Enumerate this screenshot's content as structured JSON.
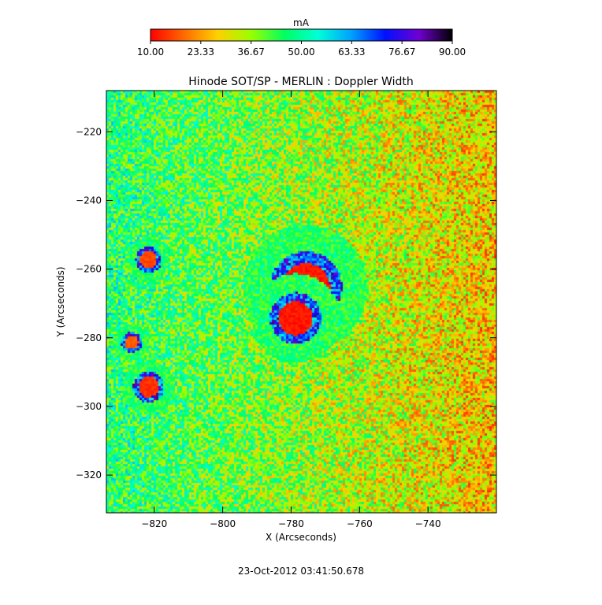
{
  "chart_data": {
    "type": "heatmap",
    "title": "Hinode SOT/SP - MERLIN : Doppler Width",
    "xlabel": "X (Arcseconds)",
    "ylabel": "Y (Arcseconds)",
    "xlim": [
      -834,
      -720
    ],
    "ylim": [
      -331,
      -208
    ],
    "x_ticks": [
      -820,
      -800,
      -780,
      -760,
      -740
    ],
    "y_ticks": [
      -220,
      -240,
      -260,
      -280,
      -300,
      -320
    ],
    "colorbar": {
      "label": "mA",
      "range": [
        10.0,
        90.0
      ],
      "tick_labels": [
        "10.00",
        "23.33",
        "36.67",
        "50.00",
        "63.33",
        "76.67",
        "90.00"
      ],
      "colors": [
        "#ff0000",
        "#ff6a00",
        "#ffd000",
        "#9aff00",
        "#00ff60",
        "#00ffd8",
        "#00a0ff",
        "#0010ff",
        "#7000d0",
        "#000000"
      ]
    },
    "features": [
      {
        "kind": "umbra",
        "center": [
          -776,
          -265
        ],
        "radius": 7,
        "value": 12
      },
      {
        "kind": "umbra",
        "center": [
          -779,
          -274
        ],
        "radius": 5,
        "value": 12
      },
      {
        "kind": "pore",
        "center": [
          -822,
          -294
        ],
        "radius": 3,
        "value": 14
      },
      {
        "kind": "pore",
        "center": [
          -822,
          -257
        ],
        "radius": 2.5,
        "value": 16
      },
      {
        "kind": "pore",
        "center": [
          -827,
          -281
        ],
        "radius": 2,
        "value": 18
      }
    ],
    "background_value": 42
  },
  "footer": {
    "timestamp": "23-Oct-2012 03:41:50.678"
  }
}
